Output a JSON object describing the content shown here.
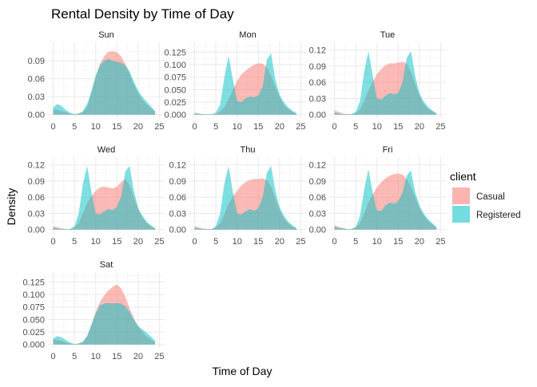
{
  "chart_data": {
    "type": "area",
    "title": "Rental Density by Time of Day",
    "xlabel": "Time of Day",
    "ylabel": "Density",
    "xlim": [
      0,
      25
    ],
    "x_ticks": [
      0,
      5,
      10,
      15,
      20,
      25
    ],
    "grid": true,
    "legend": {
      "title": "client",
      "position": "right",
      "entries": [
        {
          "label": "Casual",
          "color": "#F8766D"
        },
        {
          "label": "Registered",
          "color": "#00BFC4"
        }
      ]
    },
    "series_colors": {
      "Casual": "#F8766D",
      "Registered": "#00BFC4"
    },
    "panels": [
      {
        "name": "Sun",
        "ylim": [
          0,
          0.115
        ],
        "y_ticks": [
          "0.00",
          "0.03",
          "0.06",
          "0.09"
        ],
        "series": [
          {
            "name": "Casual",
            "x": [
              0,
              1,
              2,
              3,
              4,
              5,
              6,
              7,
              8,
              9,
              10,
              11,
              12,
              13,
              14,
              15,
              16,
              17,
              18,
              19,
              20,
              21,
              22,
              23,
              24
            ],
            "values": [
              0.009,
              0.008,
              0.006,
              0.004,
              0.002,
              0.001,
              0.002,
              0.004,
              0.013,
              0.035,
              0.062,
              0.085,
              0.097,
              0.105,
              0.106,
              0.104,
              0.097,
              0.085,
              0.068,
              0.05,
              0.035,
              0.025,
              0.017,
              0.011,
              0.005
            ]
          },
          {
            "name": "Registered",
            "x": [
              0,
              1,
              2,
              3,
              4,
              5,
              6,
              7,
              8,
              9,
              10,
              11,
              12,
              13,
              14,
              15,
              16,
              17,
              18,
              19,
              20,
              21,
              22,
              23,
              24
            ],
            "values": [
              0.012,
              0.018,
              0.014,
              0.008,
              0.003,
              0.001,
              0.002,
              0.006,
              0.018,
              0.04,
              0.065,
              0.082,
              0.09,
              0.093,
              0.09,
              0.088,
              0.087,
              0.082,
              0.072,
              0.055,
              0.04,
              0.03,
              0.022,
              0.014,
              0.006
            ]
          }
        ]
      },
      {
        "name": "Mon",
        "ylim": [
          0,
          0.138
        ],
        "y_ticks": [
          "0.000",
          "0.025",
          "0.050",
          "0.075",
          "0.100",
          "0.125"
        ],
        "series": [
          {
            "name": "Casual",
            "x": [
              0,
              1,
              2,
              3,
              4,
              5,
              6,
              7,
              8,
              9,
              10,
              11,
              12,
              13,
              14,
              15,
              16,
              17,
              18,
              19,
              20,
              21,
              22,
              23,
              24
            ],
            "values": [
              0.003,
              0.002,
              0.001,
              0.001,
              0.001,
              0.002,
              0.006,
              0.015,
              0.03,
              0.05,
              0.068,
              0.08,
              0.088,
              0.095,
              0.1,
              0.103,
              0.102,
              0.095,
              0.078,
              0.055,
              0.035,
              0.02,
              0.012,
              0.006,
              0.002
            ]
          },
          {
            "name": "Registered",
            "x": [
              0,
              1,
              2,
              3,
              4,
              5,
              6,
              7,
              8,
              9,
              10,
              11,
              12,
              13,
              14,
              15,
              16,
              17,
              18,
              19,
              20,
              21,
              22,
              23,
              24
            ],
            "values": [
              0.004,
              0.002,
              0.001,
              0.001,
              0.001,
              0.004,
              0.02,
              0.075,
              0.118,
              0.07,
              0.028,
              0.025,
              0.033,
              0.036,
              0.035,
              0.038,
              0.055,
              0.11,
              0.123,
              0.07,
              0.04,
              0.025,
              0.015,
              0.008,
              0.003
            ]
          }
        ]
      },
      {
        "name": "Tue",
        "ylim": [
          0,
          0.128
        ],
        "y_ticks": [
          "0.00",
          "0.03",
          "0.06",
          "0.09",
          "0.12"
        ],
        "series": [
          {
            "name": "Casual",
            "x": [
              0,
              1,
              2,
              3,
              4,
              5,
              6,
              7,
              8,
              9,
              10,
              11,
              12,
              13,
              14,
              15,
              16,
              17,
              18,
              19,
              20,
              21,
              22,
              23,
              24
            ],
            "values": [
              0.008,
              0.005,
              0.002,
              0.001,
              0.001,
              0.003,
              0.01,
              0.025,
              0.045,
              0.062,
              0.075,
              0.085,
              0.092,
              0.095,
              0.095,
              0.097,
              0.098,
              0.095,
              0.08,
              0.057,
              0.035,
              0.02,
              0.011,
              0.006,
              0.002
            ]
          },
          {
            "name": "Registered",
            "x": [
              0,
              1,
              2,
              3,
              4,
              5,
              6,
              7,
              8,
              9,
              10,
              11,
              12,
              13,
              14,
              15,
              16,
              17,
              18,
              19,
              20,
              21,
              22,
              23,
              24
            ],
            "values": [
              0.004,
              0.002,
              0.001,
              0.001,
              0.001,
              0.005,
              0.025,
              0.08,
              0.118,
              0.072,
              0.03,
              0.028,
              0.035,
              0.04,
              0.038,
              0.04,
              0.06,
              0.105,
              0.118,
              0.072,
              0.04,
              0.025,
              0.015,
              0.008,
              0.003
            ]
          }
        ]
      },
      {
        "name": "Wed",
        "ylim": [
          0,
          0.128
        ],
        "y_ticks": [
          "0.00",
          "0.03",
          "0.06",
          "0.09",
          "0.12"
        ],
        "series": [
          {
            "name": "Casual",
            "x": [
              0,
              1,
              2,
              3,
              4,
              5,
              6,
              7,
              8,
              9,
              10,
              11,
              12,
              13,
              14,
              15,
              16,
              17,
              18,
              19,
              20,
              21,
              22,
              23,
              24
            ],
            "values": [
              0.006,
              0.004,
              0.002,
              0.001,
              0.001,
              0.004,
              0.012,
              0.03,
              0.05,
              0.062,
              0.072,
              0.078,
              0.08,
              0.078,
              0.076,
              0.08,
              0.088,
              0.094,
              0.082,
              0.06,
              0.038,
              0.022,
              0.012,
              0.006,
              0.002
            ]
          },
          {
            "name": "Registered",
            "x": [
              0,
              1,
              2,
              3,
              4,
              5,
              6,
              7,
              8,
              9,
              10,
              11,
              12,
              13,
              14,
              15,
              16,
              17,
              18,
              19,
              20,
              21,
              22,
              23,
              24
            ],
            "values": [
              0.004,
              0.002,
              0.001,
              0.001,
              0.001,
              0.006,
              0.03,
              0.085,
              0.118,
              0.07,
              0.03,
              0.028,
              0.034,
              0.038,
              0.036,
              0.042,
              0.062,
              0.108,
              0.118,
              0.072,
              0.04,
              0.026,
              0.015,
              0.008,
              0.003
            ]
          }
        ]
      },
      {
        "name": "Thu",
        "ylim": [
          0,
          0.128
        ],
        "y_ticks": [
          "0.00",
          "0.03",
          "0.06",
          "0.09",
          "0.12"
        ],
        "series": [
          {
            "name": "Casual",
            "x": [
              0,
              1,
              2,
              3,
              4,
              5,
              6,
              7,
              8,
              9,
              10,
              11,
              12,
              13,
              14,
              15,
              16,
              17,
              18,
              19,
              20,
              21,
              22,
              23,
              24
            ],
            "values": [
              0.006,
              0.004,
              0.002,
              0.001,
              0.001,
              0.004,
              0.012,
              0.028,
              0.048,
              0.062,
              0.072,
              0.082,
              0.088,
              0.092,
              0.094,
              0.094,
              0.095,
              0.092,
              0.08,
              0.058,
              0.036,
              0.021,
              0.012,
              0.006,
              0.002
            ]
          },
          {
            "name": "Registered",
            "x": [
              0,
              1,
              2,
              3,
              4,
              5,
              6,
              7,
              8,
              9,
              10,
              11,
              12,
              13,
              14,
              15,
              16,
              17,
              18,
              19,
              20,
              21,
              22,
              23,
              24
            ],
            "values": [
              0.004,
              0.002,
              0.001,
              0.001,
              0.001,
              0.006,
              0.03,
              0.085,
              0.118,
              0.07,
              0.03,
              0.028,
              0.034,
              0.038,
              0.035,
              0.04,
              0.06,
              0.105,
              0.118,
              0.072,
              0.042,
              0.026,
              0.015,
              0.008,
              0.003
            ]
          }
        ]
      },
      {
        "name": "Fri",
        "ylim": [
          0,
          0.128
        ],
        "y_ticks": [
          "0.00",
          "0.03",
          "0.06",
          "0.09",
          "0.12"
        ],
        "series": [
          {
            "name": "Casual",
            "x": [
              0,
              1,
              2,
              3,
              4,
              5,
              6,
              7,
              8,
              9,
              10,
              11,
              12,
              13,
              14,
              15,
              16,
              17,
              18,
              19,
              20,
              21,
              22,
              23,
              24
            ],
            "values": [
              0.008,
              0.005,
              0.003,
              0.001,
              0.001,
              0.004,
              0.012,
              0.03,
              0.05,
              0.065,
              0.078,
              0.088,
              0.095,
              0.1,
              0.103,
              0.104,
              0.102,
              0.094,
              0.08,
              0.06,
              0.04,
              0.026,
              0.016,
              0.01,
              0.004
            ]
          },
          {
            "name": "Registered",
            "x": [
              0,
              1,
              2,
              3,
              4,
              5,
              6,
              7,
              8,
              9,
              10,
              11,
              12,
              13,
              14,
              15,
              16,
              17,
              18,
              19,
              20,
              21,
              22,
              23,
              24
            ],
            "values": [
              0.006,
              0.003,
              0.002,
              0.001,
              0.001,
              0.005,
              0.025,
              0.075,
              0.112,
              0.068,
              0.035,
              0.035,
              0.045,
              0.05,
              0.048,
              0.052,
              0.068,
              0.1,
              0.11,
              0.07,
              0.045,
              0.03,
              0.02,
              0.012,
              0.005
            ]
          }
        ]
      },
      {
        "name": "Sat",
        "ylim": [
          0,
          0.138
        ],
        "y_ticks": [
          "0.000",
          "0.025",
          "0.050",
          "0.075",
          "0.100",
          "0.125"
        ],
        "series": [
          {
            "name": "Casual",
            "x": [
              0,
              1,
              2,
              3,
              4,
              5,
              6,
              7,
              8,
              9,
              10,
              11,
              12,
              13,
              14,
              15,
              16,
              17,
              18,
              19,
              20,
              21,
              22,
              23,
              24
            ],
            "values": [
              0.01,
              0.009,
              0.007,
              0.004,
              0.002,
              0.001,
              0.002,
              0.005,
              0.015,
              0.038,
              0.065,
              0.085,
              0.098,
              0.108,
              0.115,
              0.12,
              0.112,
              0.095,
              0.072,
              0.052,
              0.036,
              0.025,
              0.016,
              0.01,
              0.004
            ]
          },
          {
            "name": "Registered",
            "x": [
              0,
              1,
              2,
              3,
              4,
              5,
              6,
              7,
              8,
              9,
              10,
              11,
              12,
              13,
              14,
              15,
              16,
              17,
              18,
              19,
              20,
              21,
              22,
              23,
              24
            ],
            "values": [
              0.012,
              0.017,
              0.014,
              0.009,
              0.004,
              0.001,
              0.002,
              0.006,
              0.018,
              0.04,
              0.062,
              0.078,
              0.082,
              0.083,
              0.082,
              0.083,
              0.082,
              0.076,
              0.065,
              0.05,
              0.037,
              0.03,
              0.024,
              0.016,
              0.008
            ]
          }
        ]
      }
    ]
  }
}
